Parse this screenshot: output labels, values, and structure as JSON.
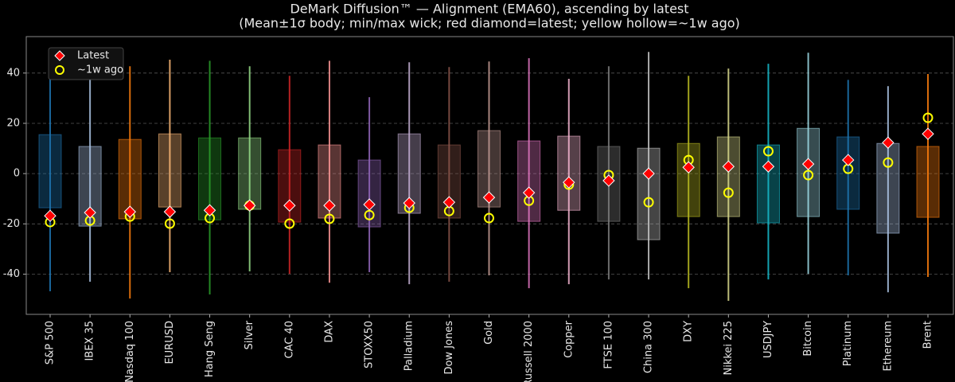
{
  "chart_data": {
    "type": "range",
    "title": "DeMark Diffusion™ — Alignment (EMA60), ascending by latest",
    "subtitle": "(Mean±1σ body; min/max wick; red diamond=latest; yellow hollow=~1w ago)",
    "categories": [
      "S&P 500",
      "IBEX 35",
      "Nasdaq 100",
      "EURUSD",
      "Hang Seng",
      "Silver",
      "CAC 40",
      "DAX",
      "STOXX50",
      "Palladium",
      "Dow Jones",
      "Gold",
      "Russell 2000",
      "Copper",
      "FTSE 100",
      "China 300",
      "DXY",
      "Nikkei 225",
      "USDJPY",
      "Bitcoin",
      "Platinum",
      "Ethereum",
      "Brent"
    ],
    "colors": [
      "#1f77b4",
      "#aec7e8",
      "#ff7f0e",
      "#ffbb78",
      "#2ca02c",
      "#98df8a",
      "#d62728",
      "#ff9896",
      "#9467bd",
      "#c5b0d5",
      "#8c564b",
      "#c49c94",
      "#e377c2",
      "#f7b6d2",
      "#7f7f7f",
      "#c7c7c7",
      "#bcbd22",
      "#dbdb8d",
      "#17becf",
      "#9edae5",
      "#1f77b4",
      "#aec7e8",
      "#ff7f0e"
    ],
    "body_high": [
      15.5,
      10.8,
      13.6,
      15.8,
      14.2,
      14.2,
      9.5,
      11.4,
      5.4,
      15.8,
      11.4,
      17.1,
      13,
      14.9,
      10.8,
      10.1,
      12,
      14.6,
      11.4,
      18,
      14.6,
      12,
      10.8
    ],
    "body_low": [
      -13.6,
      -20.9,
      -18,
      -13.3,
      -18.4,
      -14.2,
      -19.3,
      -17.7,
      -21.2,
      -15.8,
      -17.7,
      -13.3,
      -19,
      -14.6,
      -19,
      -26.3,
      -17.1,
      -17.1,
      -19.6,
      -17.1,
      -14.2,
      -23.7,
      -17.4
    ],
    "wick_max": [
      45.9,
      46,
      42.7,
      45.3,
      44.9,
      42.7,
      38.9,
      44.9,
      30.4,
      44.3,
      42.4,
      44.6,
      45.9,
      37.7,
      42.7,
      48.4,
      38.9,
      41.8,
      43.7,
      48.1,
      37.3,
      34.8,
      39.6
    ],
    "wick_min": [
      -46.8,
      -43,
      -49.7,
      -39.2,
      -48.1,
      -38.9,
      -39.9,
      -43.4,
      -39.2,
      -44,
      -43,
      -40.5,
      -45.6,
      -44,
      -42.1,
      -42.1,
      -45.6,
      -50.6,
      -42.1,
      -39.9,
      -40.5,
      -47.2,
      -41.1
    ],
    "series": [
      {
        "name": "Latest",
        "color": "#ff0000",
        "values": [
          -16.8,
          -15.5,
          -15.2,
          -15.2,
          -14.6,
          -12.7,
          -12.7,
          -12.7,
          -12.3,
          -11.7,
          -11.4,
          -9.5,
          -7.6,
          -3.5,
          -2.8,
          0,
          2.5,
          2.8,
          2.8,
          3.8,
          5.4,
          12.3,
          15.8
        ]
      },
      {
        "name": "~1w ago",
        "color": "#ffff00",
        "values": [
          -19.3,
          -18.7,
          -17.1,
          -19.9,
          -17.7,
          -12.7,
          -19.9,
          -18,
          -16.5,
          -13.6,
          -14.9,
          -17.7,
          -10.8,
          -4.4,
          -0.6,
          -11.4,
          5.4,
          -7.6,
          8.9,
          -0.6,
          1.9,
          4.4,
          22.2
        ]
      }
    ],
    "ylim": [
      -56,
      54.5
    ],
    "yticks": [
      -40,
      -20,
      0,
      20,
      40
    ],
    "grid": true,
    "legend": "upper left"
  }
}
